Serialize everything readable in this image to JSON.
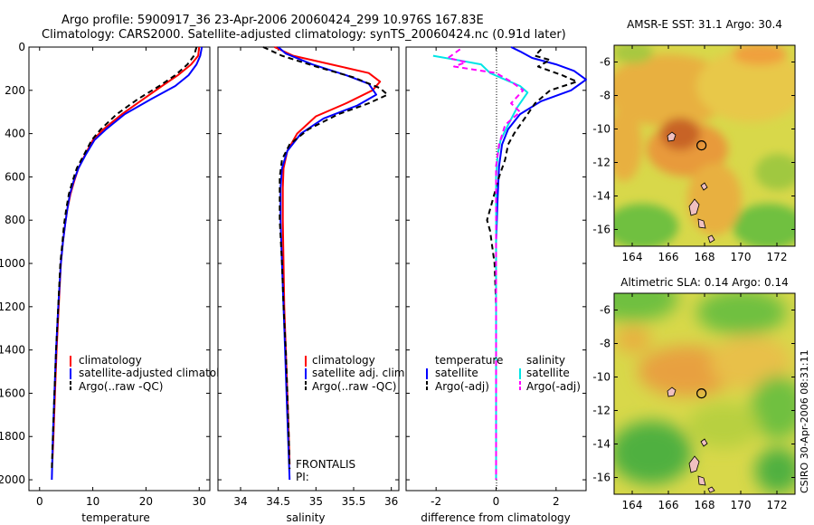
{
  "header": {
    "line1": "Argo profile:  5900917_36 23-Apr-2006 20060424_299 10.976S 167.83E",
    "line2": "Climatology: CARS2000. Satellite-adjusted climatology: synTS_20060424.nc (0.91d later)"
  },
  "side_label": "CSIRO 30-Apr-2006 08:31:11",
  "colors": {
    "climatology": "#ff0000",
    "satellite": "#0000ff",
    "argo": "#000000",
    "salinity_satellite": "#00e5e5",
    "salinity_argo": "#ff00ff"
  },
  "chart_data": [
    {
      "type": "line",
      "id": "temperature",
      "xlabel": "temperature",
      "xlim": [
        -2,
        32
      ],
      "ylim": [
        0,
        2050
      ],
      "y_reversed": true,
      "xticks": [
        0,
        10,
        20,
        30
      ],
      "yticks": [
        0,
        200,
        400,
        600,
        800,
        1000,
        1200,
        1400,
        1600,
        1800,
        2000
      ],
      "legend": [
        "climatology",
        "satellite-adjusted climatology",
        "Argo(..raw -QC)"
      ],
      "series": [
        {
          "name": "climatology",
          "color": "#ff0000",
          "dash": "",
          "points": [
            [
              30.0,
              0
            ],
            [
              29.8,
              40
            ],
            [
              28.5,
              80
            ],
            [
              26.0,
              130
            ],
            [
              23.0,
              180
            ],
            [
              19.5,
              240
            ],
            [
              15.5,
              310
            ],
            [
              12.0,
              380
            ],
            [
              10.0,
              430
            ],
            [
              8.5,
              500
            ],
            [
              7.3,
              560
            ],
            [
              6.5,
              620
            ],
            [
              5.8,
              680
            ],
            [
              5.2,
              750
            ],
            [
              4.8,
              820
            ],
            [
              4.4,
              900
            ],
            [
              4.0,
              1000
            ],
            [
              3.6,
              1200
            ],
            [
              3.2,
              1400
            ],
            [
              2.9,
              1600
            ],
            [
              2.6,
              1800
            ],
            [
              2.4,
              1920
            ]
          ]
        },
        {
          "name": "satellite-adjusted climatology",
          "color": "#0000ff",
          "dash": "",
          "points": [
            [
              30.5,
              0
            ],
            [
              30.2,
              40
            ],
            [
              29.5,
              80
            ],
            [
              28.0,
              130
            ],
            [
              25.5,
              180
            ],
            [
              21.0,
              240
            ],
            [
              16.0,
              310
            ],
            [
              12.5,
              380
            ],
            [
              10.3,
              430
            ],
            [
              8.6,
              500
            ],
            [
              7.3,
              560
            ],
            [
              6.4,
              620
            ],
            [
              5.7,
              680
            ],
            [
              5.2,
              750
            ],
            [
              4.8,
              820
            ],
            [
              4.4,
              900
            ],
            [
              4.0,
              1000
            ],
            [
              3.5,
              1200
            ],
            [
              3.1,
              1400
            ],
            [
              2.8,
              1600
            ],
            [
              2.5,
              1800
            ],
            [
              2.3,
              2000
            ]
          ]
        },
        {
          "name": "Argo(..raw -QC)",
          "color": "#000000",
          "dash": "6,4",
          "points": [
            [
              29.5,
              0
            ],
            [
              29.0,
              40
            ],
            [
              27.8,
              80
            ],
            [
              25.5,
              130
            ],
            [
              22.5,
              180
            ],
            [
              18.5,
              240
            ],
            [
              14.5,
              310
            ],
            [
              11.5,
              380
            ],
            [
              9.8,
              430
            ],
            [
              8.3,
              500
            ],
            [
              7.0,
              560
            ],
            [
              6.2,
              620
            ],
            [
              5.5,
              680
            ],
            [
              5.0,
              750
            ],
            [
              4.6,
              820
            ],
            [
              4.3,
              900
            ],
            [
              3.9,
              1000
            ],
            [
              3.5,
              1200
            ],
            [
              3.1,
              1400
            ],
            [
              2.8,
              1600
            ],
            [
              2.5,
              1800
            ],
            [
              2.3,
              1950
            ]
          ]
        }
      ]
    },
    {
      "type": "line",
      "id": "salinity",
      "xlabel": "salinity",
      "xlim": [
        33.7,
        36.1
      ],
      "ylim": [
        0,
        2050
      ],
      "y_reversed": true,
      "xticks": [
        34,
        34.5,
        35,
        35.5,
        36
      ],
      "legend": [
        "climatology",
        "satellite adj. clim.",
        "Argo(..raw -QC)"
      ],
      "annotation": [
        "FRONTALIS",
        "PI:"
      ],
      "series": [
        {
          "name": "climatology",
          "color": "#ff0000",
          "dash": "",
          "points": [
            [
              34.45,
              0
            ],
            [
              34.7,
              40
            ],
            [
              35.2,
              80
            ],
            [
              35.7,
              120
            ],
            [
              35.85,
              160
            ],
            [
              35.75,
              200
            ],
            [
              35.4,
              260
            ],
            [
              35.0,
              320
            ],
            [
              34.75,
              400
            ],
            [
              34.62,
              480
            ],
            [
              34.57,
              560
            ],
            [
              34.56,
              650
            ],
            [
              34.56,
              800
            ],
            [
              34.57,
              1000
            ],
            [
              34.58,
              1200
            ],
            [
              34.6,
              1400
            ],
            [
              34.62,
              1600
            ],
            [
              34.64,
              1800
            ],
            [
              34.65,
              1930
            ]
          ]
        },
        {
          "name": "satellite adj. clim.",
          "color": "#0000ff",
          "dash": "",
          "points": [
            [
              34.5,
              0
            ],
            [
              34.6,
              30
            ],
            [
              34.95,
              80
            ],
            [
              35.4,
              130
            ],
            [
              35.7,
              170
            ],
            [
              35.8,
              220
            ],
            [
              35.55,
              270
            ],
            [
              35.1,
              330
            ],
            [
              34.8,
              400
            ],
            [
              34.62,
              480
            ],
            [
              34.55,
              560
            ],
            [
              34.53,
              650
            ],
            [
              34.53,
              800
            ],
            [
              34.55,
              1000
            ],
            [
              34.57,
              1200
            ],
            [
              34.59,
              1400
            ],
            [
              34.61,
              1600
            ],
            [
              34.63,
              1800
            ],
            [
              34.65,
              2000
            ]
          ]
        },
        {
          "name": "Argo(..raw -QC)",
          "color": "#000000",
          "dash": "6,4",
          "points": [
            [
              34.3,
              0
            ],
            [
              34.55,
              40
            ],
            [
              35.0,
              90
            ],
            [
              35.5,
              140
            ],
            [
              35.85,
              190
            ],
            [
              35.95,
              220
            ],
            [
              35.7,
              260
            ],
            [
              35.3,
              310
            ],
            [
              34.9,
              380
            ],
            [
              34.65,
              450
            ],
            [
              34.55,
              520
            ],
            [
              34.52,
              600
            ],
            [
              34.52,
              800
            ],
            [
              34.55,
              1000
            ],
            [
              34.57,
              1200
            ],
            [
              34.6,
              1400
            ],
            [
              34.62,
              1600
            ],
            [
              34.64,
              1800
            ],
            [
              34.65,
              1950
            ]
          ]
        }
      ]
    },
    {
      "type": "line",
      "id": "difference",
      "xlabel": "difference from climatology",
      "xlim": [
        -3,
        3
      ],
      "ylim": [
        0,
        2050
      ],
      "y_reversed": true,
      "xticks": [
        -2,
        0,
        2
      ],
      "legend_titles": [
        "temperature",
        "salinity"
      ],
      "legend": [
        "satellite",
        "Argo(-adj)",
        "satellite",
        "Argo(-adj)"
      ],
      "series": [
        {
          "name": "satellite",
          "color": "#0000ff",
          "dash": "",
          "points": [
            [
              0.5,
              0
            ],
            [
              0.8,
              20
            ],
            [
              1.2,
              50
            ],
            [
              2.0,
              80
            ],
            [
              2.6,
              110
            ],
            [
              3.0,
              150
            ],
            [
              2.5,
              200
            ],
            [
              1.5,
              250
            ],
            [
              0.8,
              310
            ],
            [
              0.4,
              380
            ],
            [
              0.2,
              450
            ],
            [
              0.1,
              550
            ],
            [
              0.05,
              700
            ],
            [
              0.0,
              900
            ],
            [
              0.0,
              1200
            ],
            [
              0.0,
              1500
            ],
            [
              0.0,
              1800
            ],
            [
              0.0,
              2000
            ]
          ]
        },
        {
          "name": "Argo(-adj)",
          "color": "#000000",
          "dash": "6,4",
          "points": [
            [
              1.5,
              10
            ],
            [
              1.3,
              40
            ],
            [
              1.8,
              60
            ],
            [
              1.4,
              90
            ],
            [
              2.2,
              130
            ],
            [
              2.7,
              160
            ],
            [
              1.8,
              200
            ],
            [
              1.3,
              260
            ],
            [
              1.0,
              320
            ],
            [
              0.6,
              400
            ],
            [
              0.4,
              450
            ],
            [
              0.3,
              520
            ],
            [
              0.1,
              600
            ],
            [
              -0.1,
              700
            ],
            [
              -0.3,
              800
            ],
            [
              -0.2,
              850
            ],
            [
              -0.15,
              900
            ],
            [
              -0.05,
              1000
            ],
            [
              0.0,
              1200
            ],
            [
              0.0,
              1500
            ],
            [
              0.0,
              1800
            ],
            [
              0.0,
              2000
            ]
          ]
        },
        {
          "name": "satellite",
          "color": "#00e5e5",
          "dash": "",
          "points": [
            [
              -2.1,
              40
            ],
            [
              -1.3,
              60
            ],
            [
              -0.5,
              80
            ],
            [
              -0.2,
              120
            ],
            [
              0.3,
              150
            ],
            [
              0.8,
              180
            ],
            [
              1.05,
              210
            ],
            [
              0.7,
              280
            ],
            [
              0.4,
              360
            ],
            [
              0.15,
              430
            ],
            [
              0.05,
              500
            ],
            [
              0.0,
              600
            ],
            [
              0.0,
              800
            ],
            [
              0.0,
              1000
            ],
            [
              0.0,
              1200
            ],
            [
              0.0,
              1500
            ],
            [
              0.0,
              1800
            ],
            [
              0.0,
              2000
            ]
          ]
        },
        {
          "name": "Argo(-adj)",
          "color": "#ff00ff",
          "dash": "6,4",
          "points": [
            [
              -1.2,
              10
            ],
            [
              -1.6,
              50
            ],
            [
              -1.0,
              70
            ],
            [
              -1.4,
              90
            ],
            [
              0.0,
              120
            ],
            [
              0.5,
              160
            ],
            [
              0.9,
              200
            ],
            [
              0.5,
              260
            ],
            [
              0.8,
              300
            ],
            [
              0.3,
              360
            ],
            [
              0.1,
              450
            ],
            [
              0.0,
              550
            ],
            [
              0.0,
              700
            ],
            [
              0.0,
              900
            ],
            [
              0.0,
              1200
            ],
            [
              0.0,
              1500
            ],
            [
              0.0,
              1800
            ],
            [
              0.0,
              2000
            ]
          ]
        }
      ]
    },
    {
      "type": "heatmap",
      "id": "sst-map",
      "title": "AMSR-E SST: 31.1 Argo: 30.4",
      "xlim": [
        163,
        173
      ],
      "ylim": [
        -17,
        -5
      ],
      "xticks": [
        164,
        166,
        168,
        170,
        172
      ],
      "yticks": [
        -6,
        -8,
        -10,
        -12,
        -14,
        -16
      ],
      "argo_position": [
        167.83,
        -10.976
      ]
    },
    {
      "type": "heatmap",
      "id": "sla-map",
      "title": "Altimetric SLA: 0.14 Argo: 0.14",
      "xlim": [
        163,
        173
      ],
      "ylim": [
        -17,
        -5
      ],
      "xticks": [
        164,
        166,
        168,
        170,
        172
      ],
      "yticks": [
        -6,
        -8,
        -10,
        -12,
        -14,
        -16
      ],
      "argo_position": [
        167.83,
        -10.976
      ]
    }
  ]
}
